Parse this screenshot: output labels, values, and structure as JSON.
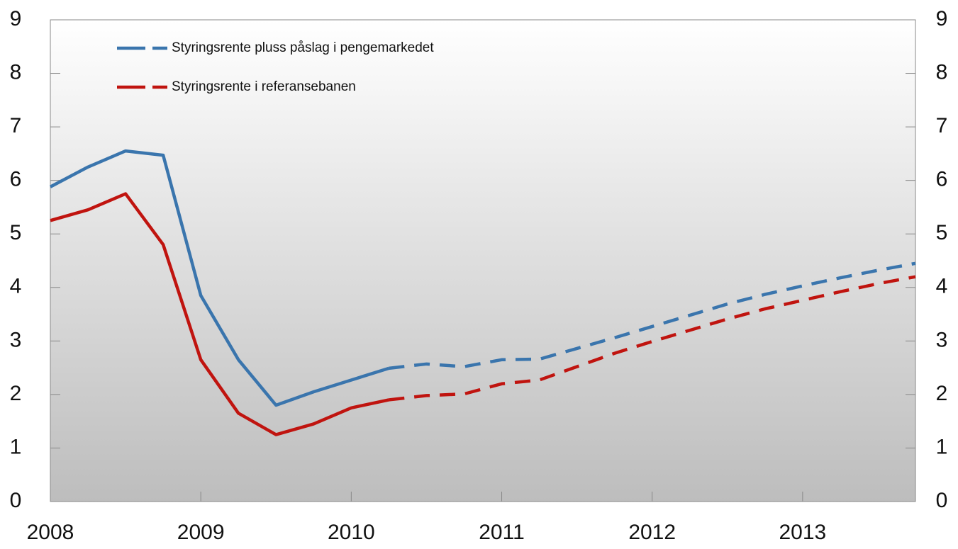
{
  "chart_data": {
    "type": "line",
    "x": [
      2008,
      2008.25,
      2008.5,
      2008.75,
      2009,
      2009.25,
      2009.5,
      2009.75,
      2010,
      2010.25,
      2010.5,
      2010.75,
      2011,
      2011.25,
      2011.5,
      2011.75,
      2012,
      2012.25,
      2012.5,
      2012.75,
      2013,
      2013.25,
      2013.5,
      2013.75
    ],
    "series": [
      {
        "name": "Styringsrente pluss påslag i pengemarkedet",
        "color": "#3a75ad",
        "values": [
          5.88,
          6.25,
          6.55,
          6.47,
          3.85,
          2.65,
          1.8,
          2.05,
          2.27,
          2.49,
          2.57,
          2.52,
          2.65,
          2.66,
          2.86,
          3.06,
          3.27,
          3.48,
          3.69,
          3.87,
          4.03,
          4.18,
          4.32,
          4.45
        ]
      },
      {
        "name": "Styringsrente i referansebanen",
        "color": "#c0140f",
        "values": [
          5.25,
          5.45,
          5.75,
          4.8,
          2.65,
          1.65,
          1.25,
          1.45,
          1.75,
          1.9,
          1.98,
          2.01,
          2.2,
          2.27,
          2.52,
          2.77,
          2.99,
          3.2,
          3.41,
          3.6,
          3.76,
          3.92,
          4.07,
          4.2
        ]
      }
    ],
    "dashed_from": 2010.25,
    "xlim": [
      2008,
      2013.75
    ],
    "xticks": [
      2008,
      2009,
      2010,
      2011,
      2012,
      2013
    ],
    "ylim": [
      0,
      9
    ],
    "yticks": [
      0,
      1,
      2,
      3,
      4,
      5,
      6,
      7,
      8,
      9
    ],
    "legend": "top-left"
  }
}
